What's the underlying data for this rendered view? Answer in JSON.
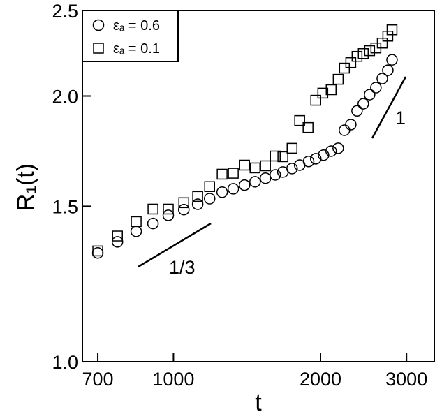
{
  "chart_data": {
    "type": "scatter",
    "x_label": "t",
    "y_label": "R₁(t)",
    "xscale": "log",
    "yscale": "log",
    "xlim": [
      651,
      3420
    ],
    "ylim": [
      1.0,
      2.5
    ],
    "xticks": [
      700,
      1000,
      2000,
      3000
    ],
    "yticks": [
      {
        "value": 1,
        "label": "1.0"
      },
      1.5,
      {
        "value": 2,
        "label": "2.0"
      },
      2.5
    ],
    "legend": "upper left",
    "annotations": [
      "1/3",
      "1"
    ],
    "series": [
      {
        "name": "εₐ = 0.6",
        "marker": "circle",
        "color": "#000000",
        "x": [
          700,
          768,
          839,
          908,
          976,
          1050,
          1121,
          1186,
          1258,
          1326,
          1398,
          1469,
          1543,
          1616,
          1675,
          1749,
          1813,
          1891,
          1956,
          2029,
          2103,
          2174,
          2239,
          2307,
          2376,
          2447,
          2521,
          2597,
          2676,
          2747,
          2802
        ],
        "values": [
          1.328,
          1.367,
          1.405,
          1.434,
          1.465,
          1.487,
          1.508,
          1.53,
          1.556,
          1.57,
          1.585,
          1.599,
          1.614,
          1.628,
          1.64,
          1.655,
          1.67,
          1.686,
          1.698,
          1.714,
          1.732,
          1.745,
          1.829,
          1.856,
          1.924,
          1.96,
          2.007,
          2.044,
          2.093,
          2.139,
          2.198
        ]
      },
      {
        "name": "εₐ = 0.1",
        "marker": "square",
        "color": "#000000",
        "x": [
          700,
          768,
          839,
          908,
          976,
          1050,
          1121,
          1186,
          1258,
          1326,
          1398,
          1469,
          1543,
          1616,
          1675,
          1749,
          1813,
          1886,
          1956,
          2022,
          2103,
          2174,
          2239,
          2307,
          2376,
          2447,
          2521,
          2597,
          2676,
          2747,
          2802
        ],
        "values": [
          1.335,
          1.388,
          1.441,
          1.489,
          1.489,
          1.514,
          1.539,
          1.579,
          1.631,
          1.635,
          1.67,
          1.658,
          1.667,
          1.71,
          1.707,
          1.745,
          1.876,
          1.842,
          1.978,
          2.015,
          2.033,
          2.089,
          2.151,
          2.182,
          2.218,
          2.234,
          2.251,
          2.267,
          2.296,
          2.338,
          2.377
        ]
      }
    ]
  }
}
